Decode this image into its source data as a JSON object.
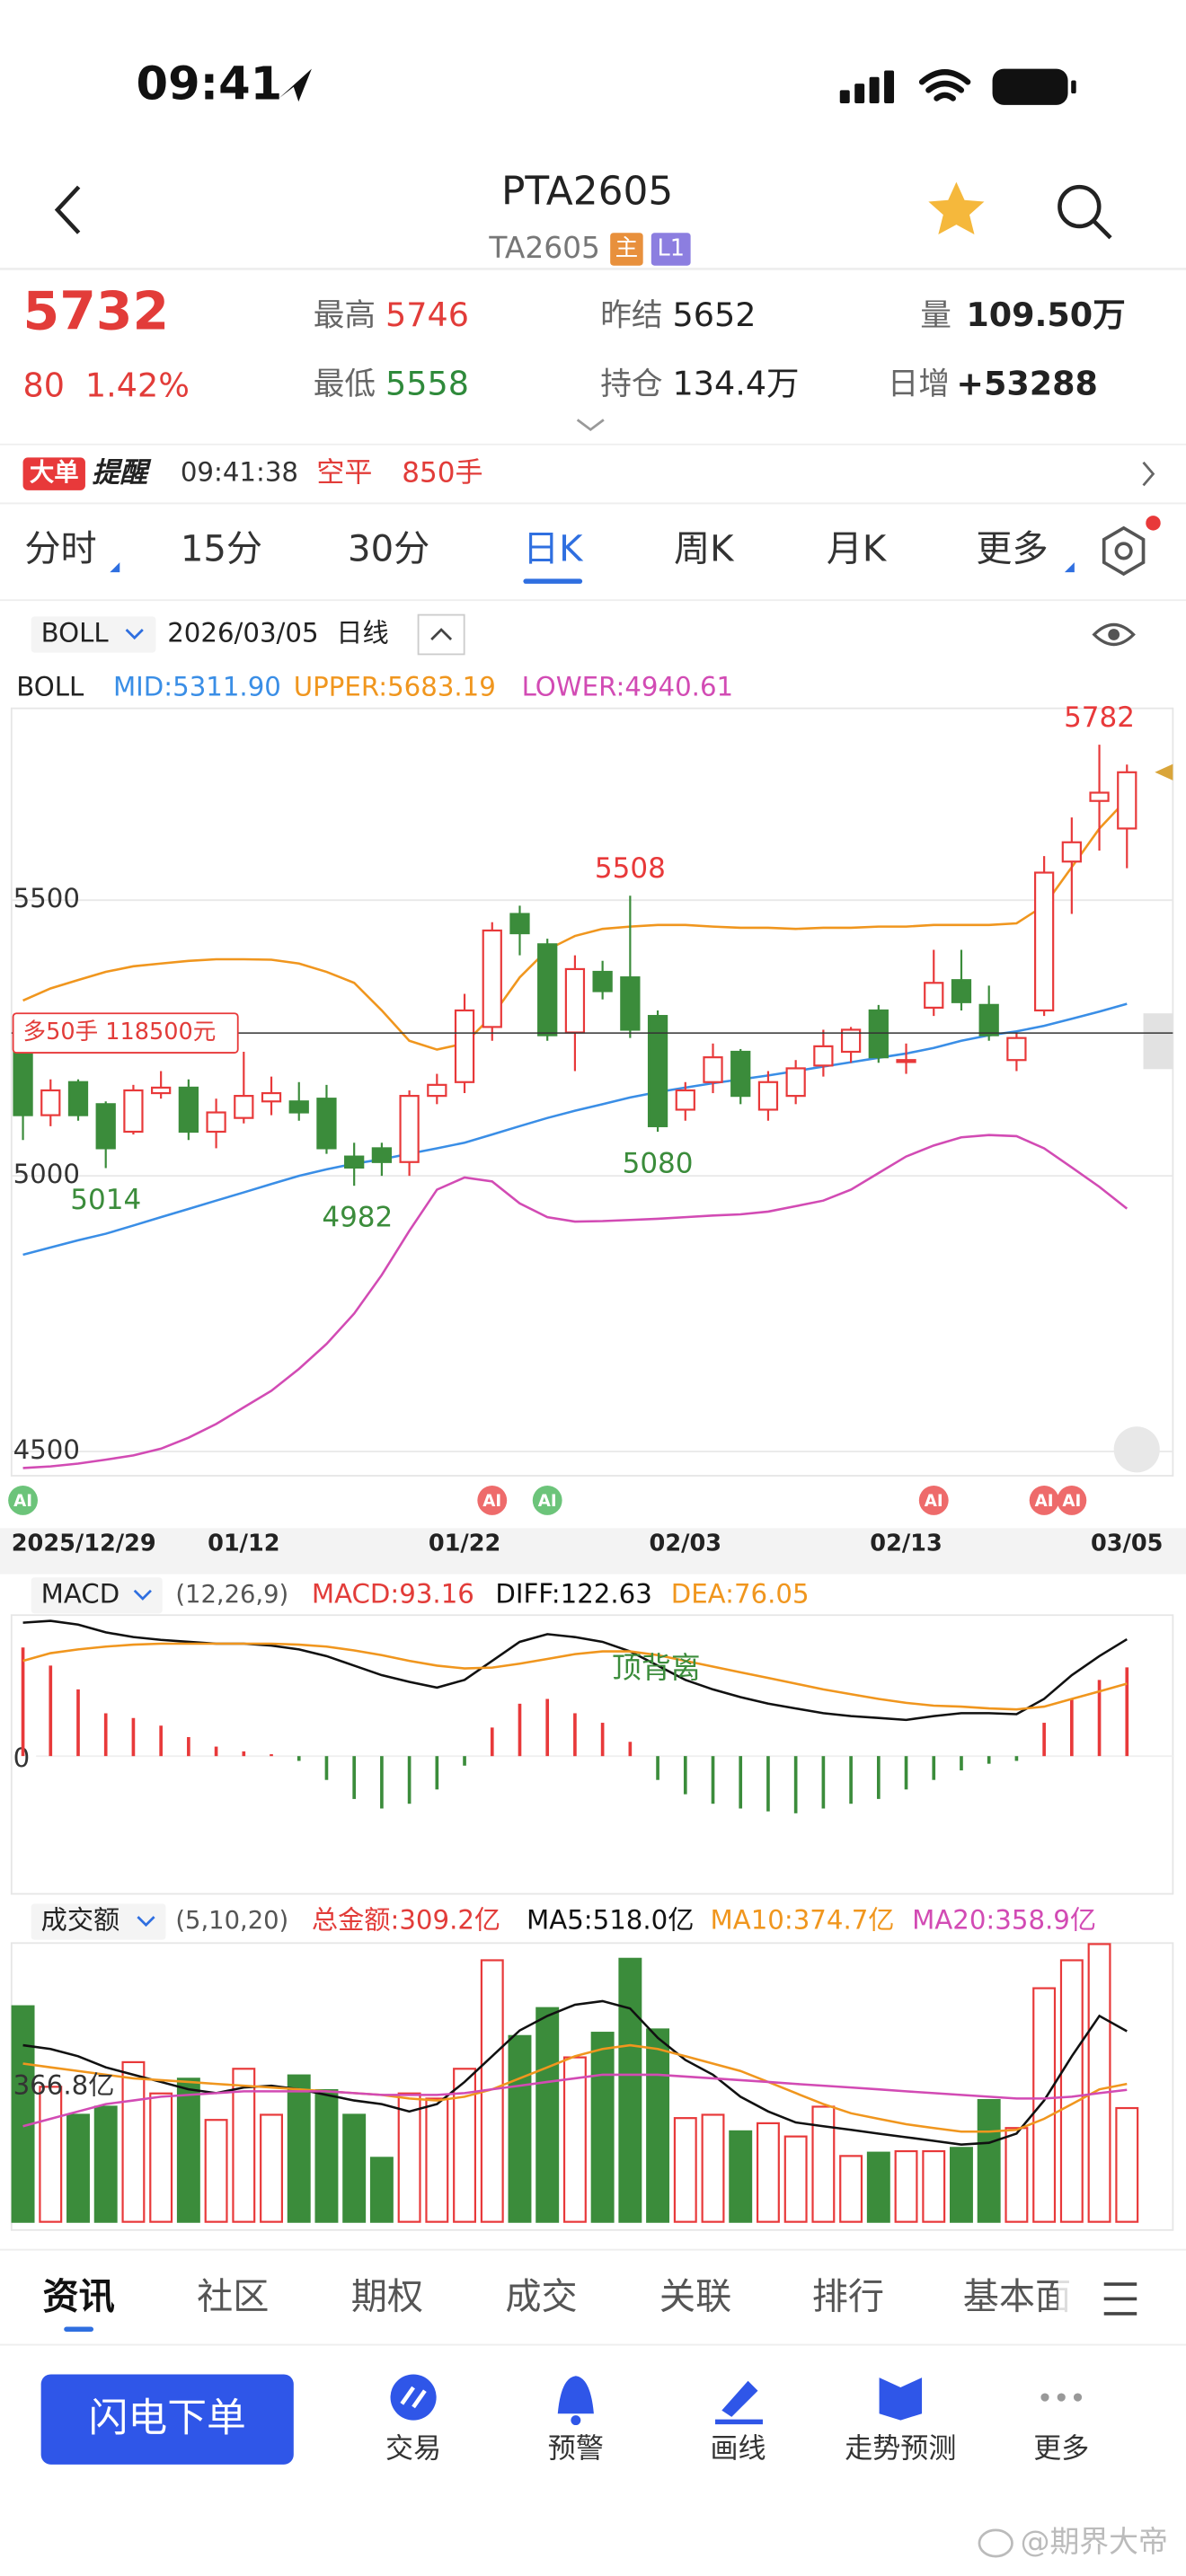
{
  "status": {
    "time": "09:41"
  },
  "header": {
    "title": "PTA2605",
    "code": "TA2605",
    "tags": [
      "主",
      "L1"
    ]
  },
  "quote": {
    "price": "5732",
    "change": "80",
    "change_pct": "1.42%",
    "stats": [
      {
        "label": "最高",
        "value": "5746"
      },
      {
        "label": "最低",
        "value": "5558"
      },
      {
        "label": "昨结",
        "value": "5652"
      },
      {
        "label": "持仓",
        "value": "134.4万"
      },
      {
        "label": "量",
        "value": "109.50万"
      },
      {
        "label": "日增",
        "value": "+53288"
      }
    ]
  },
  "alert": {
    "badge": "大单",
    "title": "提醒",
    "time": "09:41:38",
    "action": "空平",
    "volume": "850手"
  },
  "tabs": {
    "items": [
      "分时",
      "15分",
      "30分",
      "日K",
      "周K",
      "月K",
      "更多"
    ],
    "active": 3
  },
  "toolbar": {
    "indicator": "BOLL",
    "date": "2026/03/05",
    "period": "日线"
  },
  "chart_data": {
    "type": "candlestick",
    "categories": [
      "2025/12/29",
      null,
      null,
      null,
      null,
      null,
      null,
      null,
      "01/12",
      null,
      null,
      null,
      null,
      null,
      null,
      null,
      "01/22",
      null,
      null,
      null,
      null,
      null,
      null,
      null,
      "02/03",
      null,
      null,
      null,
      null,
      null,
      null,
      null,
      "02/13",
      null,
      null,
      null,
      null,
      null,
      null,
      null,
      "03/05"
    ],
    "candles": [
      {
        "open": 5229,
        "high": 5260,
        "low": 5065,
        "close": 5110
      },
      {
        "open": 5110,
        "high": 5175,
        "low": 5090,
        "close": 5155
      },
      {
        "open": 5170,
        "high": 5175,
        "low": 5100,
        "close": 5110
      },
      {
        "open": 5130,
        "high": 5135,
        "low": 5014,
        "close": 5050
      },
      {
        "open": 5080,
        "high": 5165,
        "low": 5075,
        "close": 5155
      },
      {
        "open": 5150,
        "high": 5190,
        "low": 5140,
        "close": 5160
      },
      {
        "open": 5160,
        "high": 5175,
        "low": 5065,
        "close": 5080
      },
      {
        "open": 5080,
        "high": 5140,
        "low": 5050,
        "close": 5115
      },
      {
        "open": 5105,
        "high": 5225,
        "low": 5095,
        "close": 5145
      },
      {
        "open": 5135,
        "high": 5180,
        "low": 5110,
        "close": 5150
      },
      {
        "open": 5135,
        "high": 5170,
        "low": 5100,
        "close": 5115
      },
      {
        "open": 5140,
        "high": 5165,
        "low": 5040,
        "close": 5050
      },
      {
        "open": 5035,
        "high": 5060,
        "low": 4982,
        "close": 5015
      },
      {
        "open": 5050,
        "high": 5060,
        "low": 5000,
        "close": 5025
      },
      {
        "open": 5025,
        "high": 5155,
        "low": 5000,
        "close": 5145
      },
      {
        "open": 5145,
        "high": 5185,
        "low": 5130,
        "close": 5165
      },
      {
        "open": 5170,
        "high": 5330,
        "low": 5150,
        "close": 5300
      },
      {
        "open": 5270,
        "high": 5460,
        "low": 5245,
        "close": 5445
      },
      {
        "open": 5475,
        "high": 5490,
        "low": 5400,
        "close": 5440
      },
      {
        "open": 5420,
        "high": 5430,
        "low": 5245,
        "close": 5255
      },
      {
        "open": 5260,
        "high": 5400,
        "low": 5190,
        "close": 5375
      },
      {
        "open": 5370,
        "high": 5390,
        "low": 5320,
        "close": 5335
      },
      {
        "open": 5360,
        "high": 5508,
        "low": 5250,
        "close": 5265
      },
      {
        "open": 5290,
        "high": 5300,
        "low": 5080,
        "close": 5090
      },
      {
        "open": 5120,
        "high": 5170,
        "low": 5100,
        "close": 5155
      },
      {
        "open": 5170,
        "high": 5240,
        "low": 5150,
        "close": 5215
      },
      {
        "open": 5225,
        "high": 5230,
        "low": 5130,
        "close": 5145
      },
      {
        "open": 5120,
        "high": 5190,
        "low": 5100,
        "close": 5170
      },
      {
        "open": 5145,
        "high": 5210,
        "low": 5130,
        "close": 5195
      },
      {
        "open": 5200,
        "high": 5265,
        "low": 5180,
        "close": 5235
      },
      {
        "open": 5225,
        "high": 5270,
        "low": 5205,
        "close": 5265
      },
      {
        "open": 5300,
        "high": 5310,
        "low": 5205,
        "close": 5215
      },
      {
        "open": 5210,
        "high": 5240,
        "low": 5185,
        "close": 5210
      },
      {
        "open": 5305,
        "high": 5410,
        "low": 5290,
        "close": 5350
      },
      {
        "open": 5355,
        "high": 5410,
        "low": 5300,
        "close": 5315
      },
      {
        "open": 5310,
        "high": 5345,
        "low": 5245,
        "close": 5255
      },
      {
        "open": 5210,
        "high": 5260,
        "low": 5190,
        "close": 5250
      },
      {
        "open": 5300,
        "high": 5580,
        "low": 5290,
        "close": 5550
      },
      {
        "open": 5570,
        "high": 5650,
        "low": 5475,
        "close": 5605
      },
      {
        "open": 5680,
        "high": 5782,
        "low": 5590,
        "close": 5695
      },
      {
        "open": 5630,
        "high": 5746,
        "low": 5558,
        "close": 5732
      }
    ],
    "ylim": [
      4456,
      5839
    ],
    "yticks": [
      5500,
      5000,
      4500
    ],
    "grid": true,
    "up_color": "#e8393a",
    "down_color": "#3b8c3b",
    "overlay": {
      "name": "BOLL",
      "series": [
        {
          "legend": "MID:5311.90",
          "color": "#3a8ee6",
          "values": [
            4857,
            4870,
            4883,
            4895,
            4910,
            4925,
            4940,
            4955,
            4970,
            4985,
            5000,
            5012,
            5022,
            5030,
            5040,
            5050,
            5060,
            5075,
            5090,
            5105,
            5118,
            5130,
            5142,
            5152,
            5160,
            5168,
            5175,
            5182,
            5190,
            5198,
            5206,
            5214,
            5222,
            5232,
            5245,
            5255,
            5262,
            5272,
            5285,
            5298,
            5311.9
          ]
        },
        {
          "legend": "UPPER:5683.19",
          "color": "#f0961e",
          "values": [
            5318,
            5340,
            5355,
            5370,
            5380,
            5385,
            5390,
            5393,
            5393,
            5392,
            5385,
            5370,
            5350,
            5300,
            5245,
            5229,
            5240,
            5290,
            5360,
            5410,
            5435,
            5448,
            5452,
            5455,
            5455,
            5452,
            5450,
            5450,
            5448,
            5450,
            5450,
            5452,
            5452,
            5455,
            5455,
            5455,
            5458,
            5490,
            5560,
            5630,
            5683.19
          ]
        },
        {
          "legend": "LOWER:4940.61",
          "color": "#d24bb4",
          "values": [
            4470,
            4473,
            4478,
            4485,
            4493,
            4505,
            4525,
            4550,
            4580,
            4610,
            4650,
            4695,
            4750,
            4820,
            4900,
            4975,
            4997,
            4990,
            4950,
            4925,
            4917,
            4918,
            4920,
            4922,
            4925,
            4928,
            4930,
            4935,
            4945,
            4955,
            4975,
            5005,
            5035,
            5055,
            5070,
            5074,
            5072,
            5050,
            5015,
            4980,
            4940.61
          ]
        }
      ]
    },
    "position": {
      "label": "多50手 118500元",
      "price": 5259
    },
    "ai_signals": [
      {
        "index": 0,
        "label": "AI",
        "color": "#6cc47a"
      },
      {
        "index": 17,
        "label": "AI",
        "color": "#ee6b6b"
      },
      {
        "index": 19,
        "label": "AI",
        "color": "#6cc47a"
      },
      {
        "index": 33,
        "label": "AI",
        "color": "#ee6b6b"
      },
      {
        "index": 37,
        "label": "AI",
        "color": "#ee6b6b"
      },
      {
        "index": 38,
        "label": "AI",
        "color": "#ee6b6b"
      }
    ],
    "macd": {
      "name": "MACD",
      "params": "(12,26,9)",
      "annotation": "顶背离",
      "ylim": [
        -136,
        148
      ],
      "yticks": [
        0
      ],
      "histogram": {
        "legend": "MACD:93.16",
        "pos_color": "#e8393a",
        "neg_color": "#3b8c3b",
        "values": [
          114,
          95,
          70,
          45,
          40,
          32,
          20,
          10,
          5,
          2,
          -5,
          -25,
          -45,
          -55,
          -50,
          -35,
          -10,
          30,
          55,
          60,
          45,
          35,
          15,
          -25,
          -40,
          -50,
          -55,
          -58,
          -60,
          -55,
          -50,
          -45,
          -35,
          -25,
          -15,
          -8,
          -5,
          35,
          60,
          80,
          93.16
        ]
      },
      "series": [
        {
          "legend": "DIFF:122.63",
          "color": "#111111",
          "values": [
            140,
            142,
            138,
            130,
            125,
            122,
            120,
            118,
            118,
            116,
            112,
            105,
            95,
            85,
            78,
            72,
            80,
            100,
            120,
            128,
            125,
            120,
            110,
            95,
            80,
            70,
            62,
            55,
            50,
            45,
            42,
            40,
            38,
            42,
            45,
            45,
            44,
            60,
            85,
            105,
            122.63
          ]
        },
        {
          "legend": "DEA:76.05",
          "color": "#f0961e",
          "values": [
            100,
            108,
            112,
            115,
            117,
            118,
            118,
            118,
            118,
            118,
            117,
            115,
            111,
            106,
            100,
            95,
            92,
            93,
            97,
            102,
            107,
            110,
            110,
            106,
            100,
            94,
            88,
            82,
            76,
            70,
            65,
            60,
            56,
            53,
            52,
            50,
            49,
            52,
            60,
            68,
            76.05
          ]
        }
      ]
    },
    "amount": {
      "name": "成交额",
      "params": "(5,10,20)",
      "ylim": [
        0,
        780
      ],
      "yticks": [
        {
          "value": 366.8,
          "label": "366.8亿"
        }
      ],
      "bars": {
        "legend": "总金额:309.2亿",
        "values": [
          586,
          367,
          291,
          313,
          434,
          349,
          389,
          277,
          416,
          291,
          398,
          358,
          291,
          174,
          349,
          335,
          416,
          711,
          505,
          581,
          447,
          514,
          715,
          523,
          282,
          291,
          246,
          268,
          232,
          313,
          179,
          188,
          192,
          192,
          201,
          331,
          255,
          635,
          711,
          755,
          309.2
        ]
      },
      "series": [
        {
          "legend": "MA5:518.0亿",
          "color": "#111111",
          "values": [
            480,
            470,
            450,
            420,
            400,
            380,
            360,
            350,
            365,
            370,
            360,
            345,
            330,
            320,
            300,
            320,
            380,
            450,
            520,
            560,
            590,
            600,
            580,
            500,
            440,
            400,
            340,
            300,
            270,
            260,
            250,
            240,
            230,
            220,
            210,
            215,
            240,
            330,
            450,
            560,
            518
          ]
        },
        {
          "legend": "MA10:374.7亿",
          "color": "#f0961e",
          "values": [
            430,
            420,
            410,
            400,
            390,
            385,
            380,
            375,
            370,
            365,
            360,
            355,
            350,
            345,
            335,
            330,
            340,
            360,
            390,
            420,
            450,
            470,
            480,
            470,
            450,
            430,
            410,
            380,
            350,
            320,
            295,
            280,
            265,
            255,
            245,
            245,
            250,
            280,
            320,
            360,
            374.7
          ]
        },
        {
          "legend": "MA20:358.9亿",
          "color": "#d24bb4",
          "values": [
            260,
            280,
            300,
            320,
            330,
            340,
            345,
            350,
            355,
            355,
            355,
            355,
            350,
            345,
            345,
            345,
            350,
            360,
            370,
            380,
            390,
            400,
            400,
            400,
            395,
            390,
            385,
            380,
            375,
            370,
            365,
            360,
            355,
            350,
            345,
            340,
            335,
            335,
            340,
            350,
            358.9
          ]
        }
      ]
    }
  },
  "bottom_tabs": {
    "items": [
      "资讯",
      "社区",
      "期权",
      "成交",
      "关联",
      "排行",
      "基本面"
    ],
    "active": 0
  },
  "action_bar": {
    "button": "闪电下单",
    "items": [
      "交易",
      "预警",
      "画线",
      "走势预测",
      "更多"
    ]
  },
  "watermark": "@期界大帝"
}
